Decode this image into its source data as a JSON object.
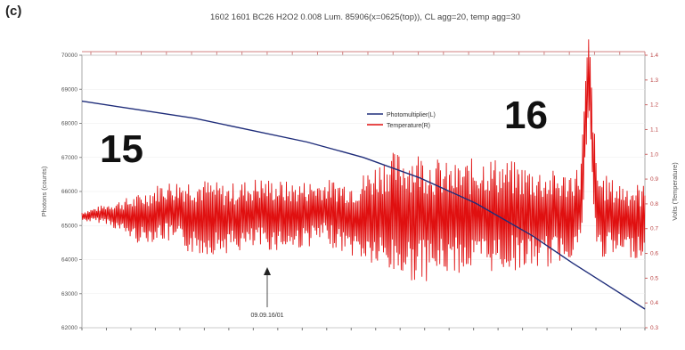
{
  "figure": {
    "panel_label": "(c)"
  },
  "chart_data": {
    "type": "line",
    "title": "1602 1601 BC26 H2O2 0.008 Lum. 85906(x=0625(top)), CL agg=20, temp agg=30",
    "xlabel": "",
    "ylabel": "Photons (counts)",
    "y2label": "Volts (Temperature)",
    "ylim": [
      62000,
      70000
    ],
    "y2lim": [
      0.3,
      1.4
    ],
    "yticks": [
      "70000",
      "69000",
      "68000",
      "67000",
      "66000",
      "65000",
      "64000",
      "63000",
      "62000"
    ],
    "y2ticks": [
      "1.4",
      "1.3",
      "1.2",
      "1.1",
      "1.0",
      "0.9",
      "0.8",
      "0.7",
      "0.6",
      "0.5",
      "0.4",
      "0.3"
    ],
    "xlim": [
      1,
      35000
    ],
    "big_labels": [
      {
        "text": "15",
        "x": 4000,
        "y": 66300
      },
      {
        "text": "16",
        "x": 28000,
        "y": 67700
      }
    ],
    "legend": {
      "position": "top-right",
      "entries": [
        "Photomultiplier(L)",
        "Temperature(R)"
      ]
    },
    "annotation": {
      "text": "09.09.16/01",
      "x": 12500,
      "y": 64500
    },
    "series": [
      {
        "name": "Photomultiplier(L)",
        "axis": "left",
        "color": "#1f2d7a",
        "x": [
          1,
          3500,
          7000,
          10500,
          14000,
          17500,
          21000,
          24500,
          28000,
          30500,
          32500,
          35000
        ],
        "y": [
          68650,
          68400,
          68150,
          67800,
          67450,
          67000,
          66400,
          65650,
          64700,
          63900,
          63300,
          62550
        ]
      },
      {
        "name": "Temperature(R)",
        "axis": "right",
        "color": "#e01010",
        "x": [
          1,
          1500,
          3500,
          5000,
          7000,
          9000,
          11000,
          13000,
          15000,
          17000,
          19000,
          21000,
          23000,
          25000,
          27000,
          29000,
          30000,
          31000,
          31500,
          32000,
          33000,
          35000
        ],
        "y": [
          0.75,
          0.76,
          0.74,
          0.77,
          0.75,
          0.74,
          0.76,
          0.75,
          0.77,
          0.74,
          0.76,
          0.75,
          0.74,
          0.76,
          0.75,
          0.74,
          0.75,
          0.78,
          1.32,
          0.76,
          0.74,
          0.73
        ],
        "spread": [
          0.02,
          0.04,
          0.1,
          0.12,
          0.16,
          0.14,
          0.15,
          0.14,
          0.13,
          0.16,
          0.25,
          0.27,
          0.22,
          0.24,
          0.22,
          0.2,
          0.18,
          0.18,
          0.2,
          0.18,
          0.16,
          0.15
        ]
      }
    ]
  }
}
